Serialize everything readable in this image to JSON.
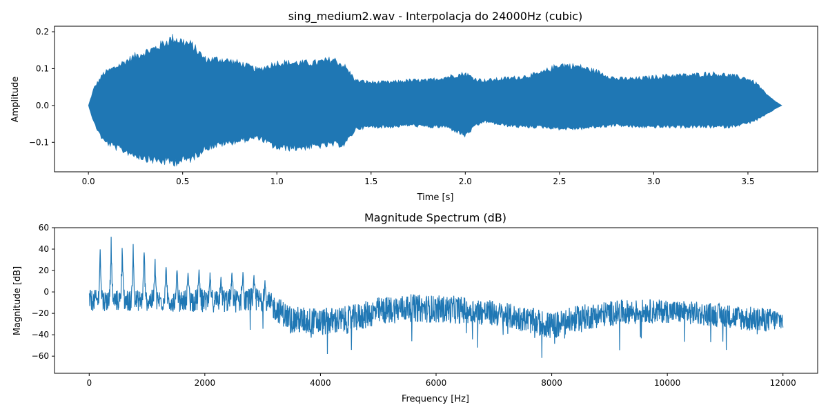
{
  "chart_data": [
    {
      "type": "area",
      "title": "sing_medium2.wav - Interpolacja do 24000Hz (cubic)",
      "xlabel": "Time [s]",
      "ylabel": "Amplitude",
      "xlim": [
        -0.18,
        3.87
      ],
      "ylim": [
        -0.18,
        0.215
      ],
      "xticks": [
        0.0,
        0.5,
        1.0,
        1.5,
        2.0,
        2.5,
        3.0,
        3.5
      ],
      "xtick_labels": [
        "0.0",
        "0.5",
        "1.0",
        "1.5",
        "2.0",
        "2.5",
        "3.0",
        "3.5"
      ],
      "yticks": [
        -0.1,
        0.0,
        0.1,
        0.2
      ],
      "ytick_labels": [
        "−0.1",
        "0.0",
        "0.1",
        "0.2"
      ],
      "envelope": {
        "time": [
          0.0,
          0.03,
          0.08,
          0.15,
          0.25,
          0.35,
          0.45,
          0.55,
          0.62,
          0.7,
          0.8,
          0.9,
          1.0,
          1.1,
          1.2,
          1.3,
          1.36,
          1.42,
          1.5,
          1.6,
          1.7,
          1.8,
          1.9,
          2.0,
          2.05,
          2.1,
          2.2,
          2.3,
          2.4,
          2.5,
          2.6,
          2.7,
          2.8,
          2.9,
          3.0,
          3.1,
          3.2,
          3.3,
          3.4,
          3.5,
          3.55,
          3.6,
          3.65,
          3.68
        ],
        "upper": [
          0.0,
          0.05,
          0.09,
          0.11,
          0.14,
          0.16,
          0.19,
          0.17,
          0.13,
          0.13,
          0.12,
          0.1,
          0.12,
          0.12,
          0.12,
          0.13,
          0.11,
          0.07,
          0.065,
          0.065,
          0.07,
          0.07,
          0.08,
          0.09,
          0.075,
          0.07,
          0.075,
          0.08,
          0.09,
          0.115,
          0.11,
          0.095,
          0.075,
          0.075,
          0.08,
          0.085,
          0.085,
          0.09,
          0.085,
          0.075,
          0.06,
          0.03,
          0.01,
          0.0
        ],
        "lower": [
          0.0,
          -0.05,
          -0.1,
          -0.12,
          -0.14,
          -0.155,
          -0.16,
          -0.15,
          -0.12,
          -0.11,
          -0.1,
          -0.09,
          -0.12,
          -0.12,
          -0.115,
          -0.11,
          -0.11,
          -0.065,
          -0.06,
          -0.06,
          -0.055,
          -0.06,
          -0.06,
          -0.085,
          -0.06,
          -0.045,
          -0.055,
          -0.06,
          -0.06,
          -0.065,
          -0.065,
          -0.06,
          -0.055,
          -0.06,
          -0.06,
          -0.06,
          -0.06,
          -0.06,
          -0.06,
          -0.05,
          -0.04,
          -0.025,
          -0.008,
          0.0
        ]
      }
    },
    {
      "type": "line",
      "title": "Magnitude Spectrum (dB)",
      "xlabel": "Frequency [Hz]",
      "ylabel": "Magnitude [dB]",
      "xlim": [
        -600,
        12600
      ],
      "ylim": [
        -76,
        60
      ],
      "xticks": [
        0,
        2000,
        4000,
        6000,
        8000,
        10000,
        12000
      ],
      "xtick_labels": [
        "0",
        "2000",
        "4000",
        "6000",
        "8000",
        "10000",
        "12000"
      ],
      "yticks": [
        -60,
        -40,
        -20,
        0,
        20,
        40,
        60
      ],
      "ytick_labels": [
        "−60",
        "−40",
        "−20",
        "0",
        "20",
        "40",
        "60"
      ],
      "harmonics": {
        "freq": [
          190,
          380,
          570,
          760,
          950,
          1140,
          1330,
          1520,
          1710,
          1900,
          2090,
          2280,
          2470,
          2660,
          2850,
          3040
        ],
        "peak_db": [
          45,
          52,
          54,
          46,
          45,
          32,
          30,
          25,
          22,
          25,
          19,
          17,
          20,
          22,
          17,
          13
        ]
      },
      "envelope": {
        "freq": [
          0,
          1000,
          2000,
          3000,
          3300,
          3500,
          4000,
          4500,
          5000,
          5500,
          6000,
          6500,
          7000,
          7500,
          8000,
          8500,
          9000,
          9500,
          10000,
          10500,
          11000,
          11500,
          12000
        ],
        "mid_db": [
          -8,
          -8,
          -8,
          -8,
          -18,
          -26,
          -28,
          -26,
          -18,
          -15,
          -16,
          -17,
          -20,
          -25,
          -32,
          -24,
          -20,
          -18,
          -18,
          -20,
          -22,
          -26,
          -26
        ],
        "spread_db": [
          10,
          10,
          11,
          12,
          12,
          13,
          13,
          13,
          13,
          13,
          13,
          13,
          12,
          12,
          13,
          12,
          12,
          11,
          11,
          11,
          11,
          12,
          10
        ]
      }
    }
  ]
}
